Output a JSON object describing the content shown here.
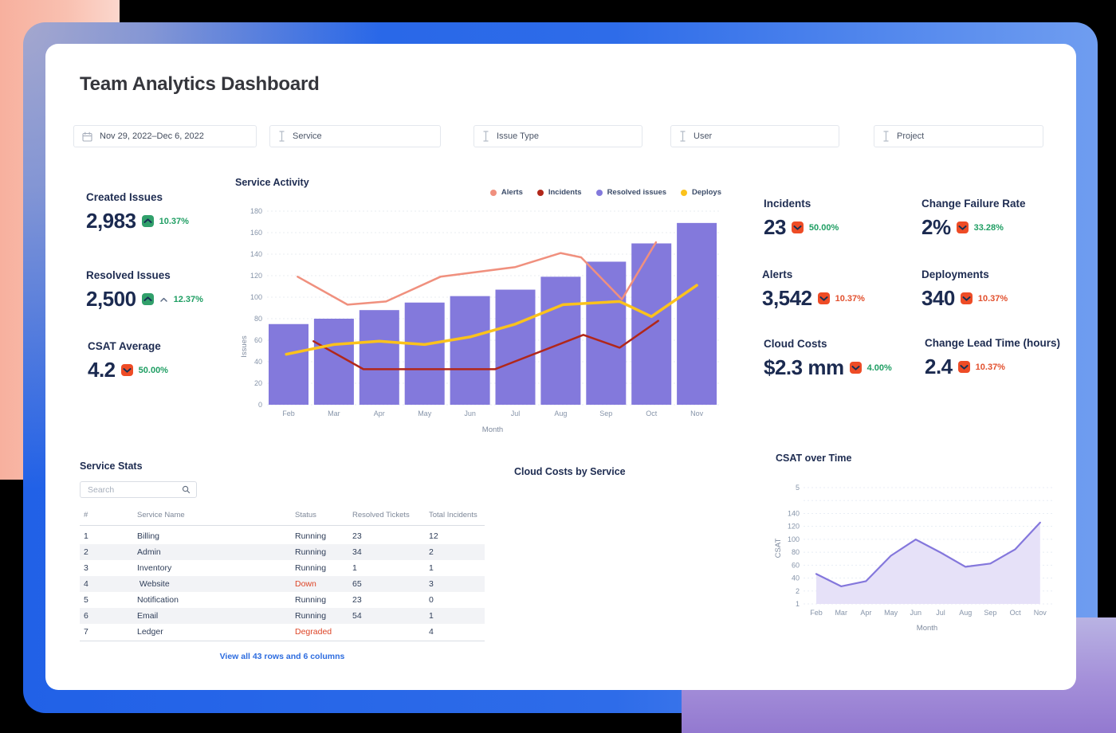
{
  "page": {
    "title": "Team Analytics Dashboard"
  },
  "filters": {
    "date_range": "Nov 29, 2022–Dec 6, 2022",
    "selects": [
      "Service",
      "Issue Type",
      "User",
      "Project"
    ]
  },
  "kpis_left": [
    {
      "label": "Created Issues",
      "value": "2,983",
      "direction": "up",
      "badge_color": "green",
      "delta": "10.37%",
      "delta_color": "green",
      "extra_caret": false
    },
    {
      "label": "Resolved Issues",
      "value": "2,500",
      "direction": "up",
      "badge_color": "green",
      "delta": "12.37%",
      "delta_color": "green",
      "extra_caret": true
    },
    {
      "label": "CSAT Average",
      "value": "4.2",
      "direction": "down",
      "badge_color": "red",
      "delta": "50.00%",
      "delta_color": "green",
      "extra_caret": false
    }
  ],
  "kpis_right": [
    {
      "label": "Incidents",
      "value": "23",
      "direction": "down",
      "badge_color": "red",
      "delta": "50.00%",
      "delta_color": "green"
    },
    {
      "label": "Change Failure Rate",
      "value": "2%",
      "direction": "down",
      "badge_color": "red",
      "delta": "33.28%",
      "delta_color": "green"
    },
    {
      "label": "Alerts",
      "value": "3,542",
      "direction": "down",
      "badge_color": "red",
      "delta": "10.37%",
      "delta_color": "red"
    },
    {
      "label": "Deployments",
      "value": "340",
      "direction": "down",
      "badge_color": "red",
      "delta": "10.37%",
      "delta_color": "red"
    },
    {
      "label": "Cloud Costs",
      "value": "$2.3 mm",
      "direction": "down",
      "badge_color": "red",
      "delta": "4.00%",
      "delta_color": "green"
    },
    {
      "label": "Change Lead Time (hours)",
      "value": "2.4",
      "direction": "down",
      "badge_color": "red",
      "delta": "10.37%",
      "delta_color": "red"
    }
  ],
  "chart_data": [
    {
      "type": "bar+line",
      "title": "Service Activity",
      "categories": [
        "Feb",
        "Mar",
        "Apr",
        "May",
        "Jun",
        "Jul",
        "Aug",
        "Sep",
        "Oct",
        "Nov"
      ],
      "xlabel": "Month",
      "ylabel": "Issues",
      "ylim": [
        0,
        180
      ],
      "ytick_step": 20,
      "grid": true,
      "legend_position": "top-right",
      "legend": [
        {
          "name": "Alerts",
          "color": "#f0907e"
        },
        {
          "name": "Incidents",
          "color": "#b1271a"
        },
        {
          "name": "Resolved issues",
          "color": "#8379dc"
        },
        {
          "name": "Deploys",
          "color": "#fbc21c"
        }
      ],
      "bars": {
        "name": "Resolved issues",
        "color": "#8379dc",
        "values": [
          75,
          80,
          88,
          95,
          101,
          107,
          119,
          133,
          150,
          169
        ]
      },
      "lines": [
        {
          "name": "Alerts",
          "color": "#f0907e",
          "width": 2.5,
          "points": [
            [
              1.2,
              119
            ],
            [
              2.3,
              93
            ],
            [
              3.15,
              96
            ],
            [
              4.35,
              119
            ],
            [
              6.0,
              128
            ],
            [
              7.0,
              141
            ],
            [
              7.45,
              137
            ],
            [
              8.35,
              98
            ],
            [
              9.1,
              151
            ]
          ]
        },
        {
          "name": "Incidents",
          "color": "#b1271a",
          "width": 2.5,
          "points": [
            [
              1.55,
              59
            ],
            [
              2.65,
              33
            ],
            [
              5.55,
              33
            ],
            [
              7.5,
              65
            ],
            [
              8.3,
              53
            ],
            [
              9.15,
              78
            ]
          ]
        },
        {
          "name": "Deploys",
          "color": "#fbc21c",
          "width": 3.5,
          "points": [
            [
              0.95,
              47
            ],
            [
              2,
              56
            ],
            [
              3,
              59
            ],
            [
              4,
              56
            ],
            [
              5,
              63
            ],
            [
              6,
              75
            ],
            [
              7.05,
              93
            ],
            [
              8.3,
              96
            ],
            [
              9,
              82
            ],
            [
              10,
              111
            ]
          ]
        }
      ]
    },
    {
      "type": "area",
      "title": "CSAT over Time",
      "categories": [
        "Feb",
        "Mar",
        "Apr",
        "May",
        "Jun",
        "Jul",
        "Aug",
        "Sep",
        "Oct",
        "Nov"
      ],
      "values": [
        47,
        28,
        36,
        75,
        100,
        80,
        58,
        63,
        85,
        126
      ],
      "xlabel": "Month",
      "ylabel": "CSAT",
      "ytick_labels_bottom_to_top": [
        "1",
        "2",
        "40",
        "60",
        "80",
        "100",
        "120",
        "140",
        "",
        "5"
      ],
      "grid": true,
      "line_color": "#8477dc",
      "fill_color": "#e6e1f8"
    }
  ],
  "service_stats": {
    "title": "Service Stats",
    "search_placeholder": "Search",
    "columns": [
      "#",
      "Service Name",
      "Status",
      "Resolved Tickets",
      "Total Incidents"
    ],
    "rows": [
      [
        "1",
        "Billing",
        "Running",
        "23",
        "12"
      ],
      [
        "2",
        "Admin",
        "Running",
        "34",
        "2"
      ],
      [
        "3",
        "Inventory",
        "Running",
        "1",
        "1"
      ],
      [
        "4",
        " Website",
        "Down",
        "65",
        "3"
      ],
      [
        "5",
        "Notification",
        "Running",
        "23",
        "0"
      ],
      [
        "6",
        "Email",
        "Running",
        "54",
        "1"
      ],
      [
        "7",
        "Ledger",
        "Degraded",
        "",
        "4"
      ]
    ],
    "status_alert_values": [
      "Down",
      "Degraded"
    ],
    "footer_link": "View all 43 rows and 6 columns"
  },
  "cloud_costs_section": {
    "title": "Cloud Costs by Service"
  },
  "colors": {
    "badge_green": "#31a06b",
    "badge_red": "#ee4c26",
    "badge_chevron": "#173054",
    "delta_green": "#1f9e63",
    "delta_red": "#e2502e",
    "status_red": "#dd4527",
    "link_blue": "#2d6cdf",
    "navy": "#1e2c51",
    "tick_gray": "#8694a9"
  }
}
